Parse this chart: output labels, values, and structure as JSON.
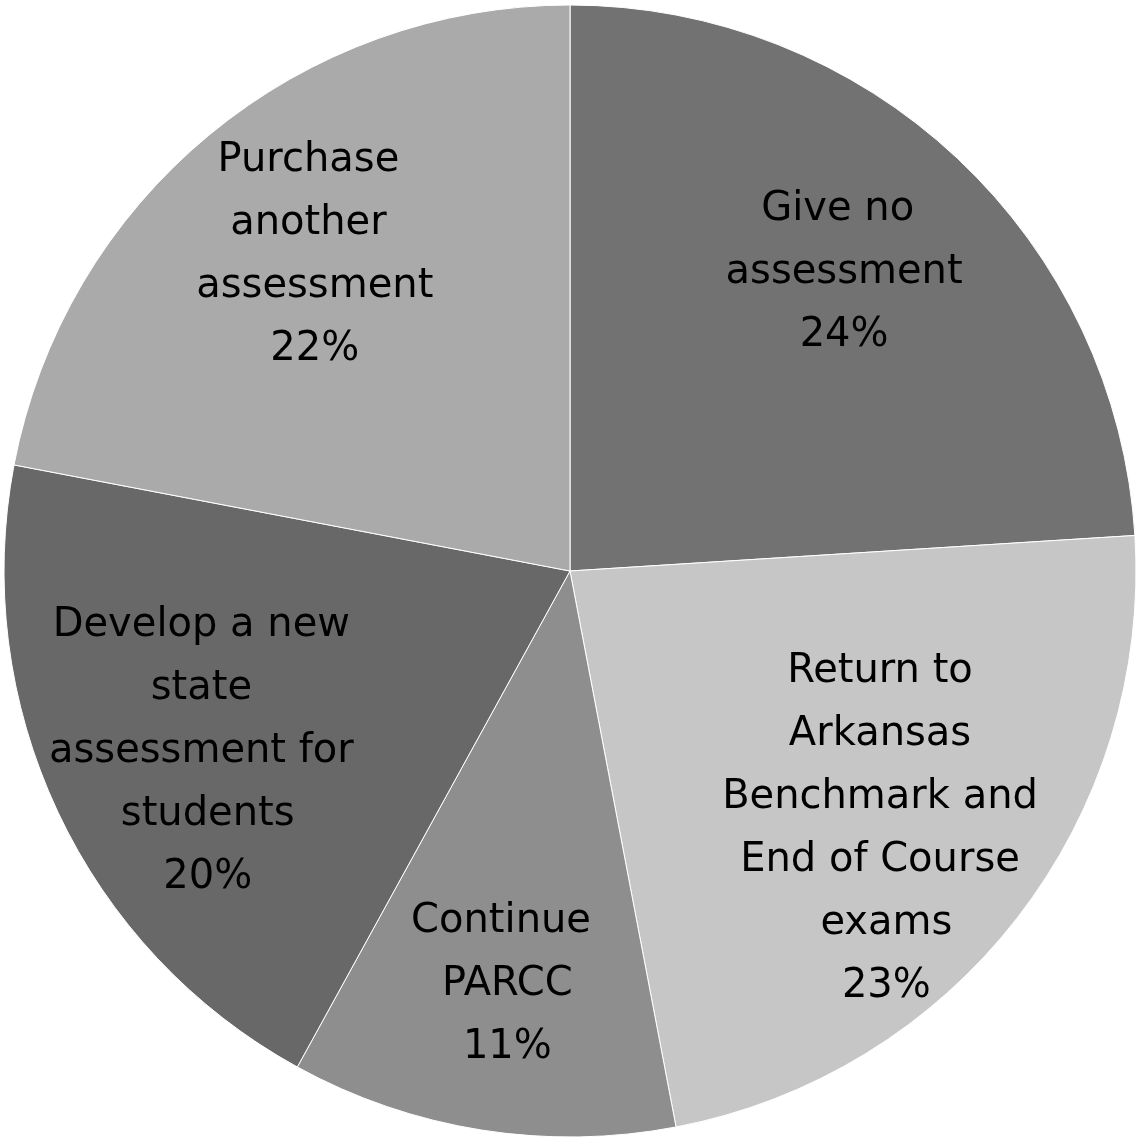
{
  "chart_data": {
    "type": "pie",
    "categories": [
      "Give no assessment",
      "Return to Arkansas Benchmark and End of Course exams",
      "Continue PARCC",
      "Develop a new state assessment for students",
      "Purchase another assessment"
    ],
    "values": [
      24,
      23,
      11,
      20,
      22
    ],
    "value_labels": [
      "24%",
      "23%",
      "11%",
      "20%",
      "22%"
    ],
    "colors": [
      "#727272",
      "#c6c6c6",
      "#8e8e8e",
      "#686868",
      "#aaaaaa"
    ],
    "legend": false
  }
}
